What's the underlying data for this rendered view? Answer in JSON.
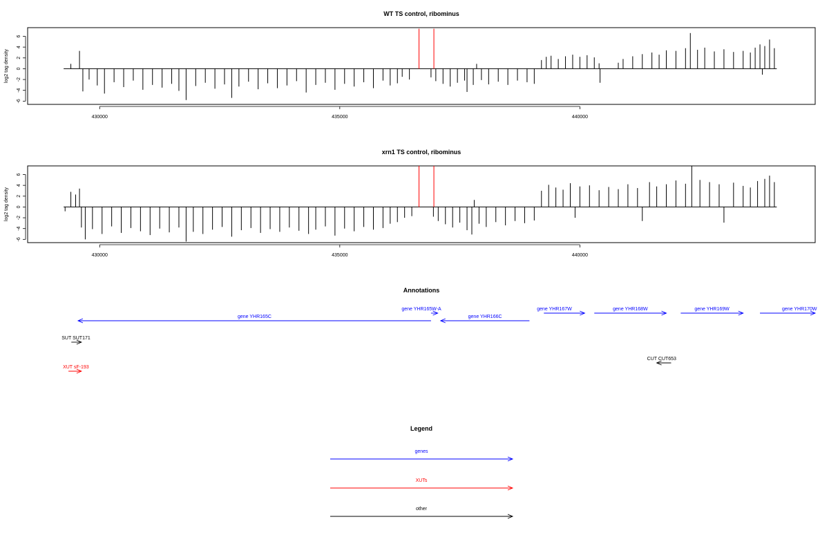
{
  "chart_data": [
    {
      "type": "bar",
      "title": "WT TS control, ribominus",
      "ylabel": "log2 tag density",
      "xlim": [
        428500,
        444900
      ],
      "ylim": [
        -6.6,
        7.6
      ],
      "x_ticks": [
        430000,
        435000,
        440000
      ],
      "x_tick_labels": [
        "430000",
        "435000",
        "440000"
      ],
      "y_ticks": [
        -6,
        -4,
        -2,
        0,
        2,
        4,
        6
      ],
      "baseline_range": [
        429250,
        444100
      ],
      "series": [
        {
          "color": "#000000",
          "values": [
            [
              429400,
              0.9
            ],
            [
              429580,
              3.3
            ],
            [
              429650,
              -4.2
            ],
            [
              429780,
              -2.0
            ],
            [
              429950,
              -3.1
            ],
            [
              430100,
              -4.6
            ],
            [
              430300,
              -2.5
            ],
            [
              430500,
              -3.4
            ],
            [
              430700,
              -2.2
            ],
            [
              430900,
              -3.9
            ],
            [
              431100,
              -3.0
            ],
            [
              431300,
              -3.5
            ],
            [
              431500,
              -2.8
            ],
            [
              431650,
              -4.1
            ],
            [
              431800,
              -5.8
            ],
            [
              432000,
              -3.2
            ],
            [
              432200,
              -2.6
            ],
            [
              432400,
              -3.7
            ],
            [
              432600,
              -2.9
            ],
            [
              432750,
              -5.4
            ],
            [
              432900,
              -3.3
            ],
            [
              433100,
              -2.4
            ],
            [
              433300,
              -3.8
            ],
            [
              433500,
              -2.7
            ],
            [
              433700,
              -3.6
            ],
            [
              433900,
              -3.1
            ],
            [
              434100,
              -2.3
            ],
            [
              434300,
              -4.4
            ],
            [
              434500,
              -3.0
            ],
            [
              434700,
              -2.6
            ],
            [
              434900,
              -3.9
            ],
            [
              435100,
              -2.8
            ],
            [
              435300,
              -3.3
            ],
            [
              435500,
              -2.5
            ],
            [
              435700,
              -3.6
            ],
            [
              435900,
              -2.2
            ],
            [
              436050,
              -3.1
            ],
            [
              436200,
              -2.7
            ],
            [
              436300,
              -1.5
            ],
            [
              436450,
              -2.0
            ],
            [
              436900,
              -1.6
            ],
            [
              437000,
              -2.3
            ],
            [
              437150,
              -2.8
            ],
            [
              437300,
              -3.3
            ],
            [
              437450,
              -2.6
            ],
            [
              437600,
              -2.2
            ],
            [
              437650,
              -4.3
            ],
            [
              437780,
              -3.0
            ],
            [
              437850,
              0.9
            ],
            [
              437950,
              -2.1
            ],
            [
              438100,
              -2.9
            ],
            [
              438300,
              -2.4
            ],
            [
              438500,
              -3.0
            ],
            [
              438700,
              -2.2
            ],
            [
              438900,
              -2.5
            ],
            [
              439050,
              -2.8
            ],
            [
              439200,
              1.6
            ],
            [
              439300,
              2.2
            ],
            [
              439400,
              2.4
            ],
            [
              439550,
              1.8
            ],
            [
              439700,
              2.3
            ],
            [
              439850,
              2.6
            ],
            [
              440000,
              2.2
            ],
            [
              440150,
              2.5
            ],
            [
              440300,
              2.1
            ],
            [
              440400,
              1.0
            ],
            [
              440420,
              -2.6
            ],
            [
              440800,
              1.1
            ],
            [
              440900,
              1.8
            ],
            [
              441100,
              2.3
            ],
            [
              441300,
              2.7
            ],
            [
              441500,
              3.0
            ],
            [
              441650,
              2.6
            ],
            [
              441800,
              3.4
            ],
            [
              442000,
              3.3
            ],
            [
              442200,
              3.8
            ],
            [
              442300,
              6.6
            ],
            [
              442450,
              3.5
            ],
            [
              442600,
              3.9
            ],
            [
              442800,
              3.2
            ],
            [
              443000,
              3.6
            ],
            [
              443200,
              3.1
            ],
            [
              443400,
              3.3
            ],
            [
              443550,
              3.0
            ],
            [
              443650,
              3.9
            ],
            [
              443750,
              4.5
            ],
            [
              443800,
              -1.1
            ],
            [
              443850,
              4.2
            ],
            [
              443950,
              5.4
            ],
            [
              444050,
              3.8
            ]
          ]
        },
        {
          "color": "#ff0000",
          "values": [
            [
              436650,
              7.4
            ],
            [
              436960,
              7.4
            ]
          ]
        }
      ]
    },
    {
      "type": "bar",
      "title": "xrn1 TS control, ribominus",
      "ylabel": "log2 tag density",
      "xlim": [
        428500,
        444900
      ],
      "ylim": [
        -6.6,
        7.6
      ],
      "x_ticks": [
        430000,
        435000,
        440000
      ],
      "x_tick_labels": [
        "430000",
        "435000",
        "440000"
      ],
      "y_ticks": [
        -6,
        -4,
        -2,
        0,
        2,
        4,
        6
      ],
      "baseline_range": [
        429250,
        444100
      ],
      "series": [
        {
          "color": "#000000",
          "values": [
            [
              429280,
              -0.8
            ],
            [
              429400,
              2.8
            ],
            [
              429500,
              2.3
            ],
            [
              429580,
              3.4
            ],
            [
              429620,
              -3.8
            ],
            [
              429700,
              -6.0
            ],
            [
              429850,
              -4.1
            ],
            [
              430050,
              -5.0
            ],
            [
              430250,
              -3.6
            ],
            [
              430450,
              -4.8
            ],
            [
              430650,
              -3.9
            ],
            [
              430850,
              -4.5
            ],
            [
              431050,
              -5.2
            ],
            [
              431250,
              -4.0
            ],
            [
              431450,
              -4.7
            ],
            [
              431650,
              -3.8
            ],
            [
              431800,
              -6.4
            ],
            [
              431950,
              -4.6
            ],
            [
              432150,
              -5.0
            ],
            [
              432350,
              -4.2
            ],
            [
              432550,
              -3.7
            ],
            [
              432750,
              -5.5
            ],
            [
              432950,
              -4.3
            ],
            [
              433150,
              -3.9
            ],
            [
              433350,
              -4.8
            ],
            [
              433550,
              -4.1
            ],
            [
              433750,
              -4.6
            ],
            [
              433950,
              -3.8
            ],
            [
              434150,
              -4.4
            ],
            [
              434350,
              -5.0
            ],
            [
              434500,
              -4.2
            ],
            [
              434700,
              -3.6
            ],
            [
              434900,
              -5.3
            ],
            [
              435100,
              -4.0
            ],
            [
              435300,
              -4.5
            ],
            [
              435500,
              -3.7
            ],
            [
              435700,
              -4.2
            ],
            [
              435900,
              -3.9
            ],
            [
              436050,
              -3.1
            ],
            [
              436200,
              -2.8
            ],
            [
              436350,
              -2.0
            ],
            [
              436500,
              -1.7
            ],
            [
              436950,
              -1.8
            ],
            [
              437050,
              -2.6
            ],
            [
              437200,
              -3.2
            ],
            [
              437350,
              -3.8
            ],
            [
              437500,
              -2.9
            ],
            [
              437650,
              -4.3
            ],
            [
              437750,
              -5.1
            ],
            [
              437800,
              1.3
            ],
            [
              437900,
              -3.1
            ],
            [
              438050,
              -3.7
            ],
            [
              438250,
              -2.8
            ],
            [
              438450,
              -3.4
            ],
            [
              438650,
              -2.6
            ],
            [
              438850,
              -3.0
            ],
            [
              439050,
              -2.5
            ],
            [
              439200,
              3.0
            ],
            [
              439350,
              4.1
            ],
            [
              439500,
              3.6
            ],
            [
              439650,
              3.2
            ],
            [
              439800,
              4.4
            ],
            [
              439900,
              -2.0
            ],
            [
              440000,
              3.8
            ],
            [
              440200,
              4.0
            ],
            [
              440400,
              3.1
            ],
            [
              440600,
              3.7
            ],
            [
              440800,
              3.3
            ],
            [
              441000,
              4.2
            ],
            [
              441200,
              3.5
            ],
            [
              441300,
              -2.6
            ],
            [
              441450,
              4.6
            ],
            [
              441600,
              3.8
            ],
            [
              441800,
              4.2
            ],
            [
              442000,
              4.9
            ],
            [
              442200,
              4.3
            ],
            [
              442330,
              7.6
            ],
            [
              442500,
              5.0
            ],
            [
              442700,
              4.6
            ],
            [
              442900,
              4.2
            ],
            [
              443000,
              -2.9
            ],
            [
              443200,
              4.5
            ],
            [
              443400,
              3.9
            ],
            [
              443550,
              3.6
            ],
            [
              443700,
              4.8
            ],
            [
              443850,
              5.2
            ],
            [
              443950,
              5.8
            ],
            [
              444050,
              4.6
            ]
          ]
        },
        {
          "color": "#ff0000",
          "values": [
            [
              436650,
              7.6
            ],
            [
              436960,
              7.6
            ]
          ]
        }
      ]
    }
  ],
  "annotations": {
    "title": "Annotations",
    "features": [
      {
        "label": "gene YHR165C",
        "start": 429550,
        "end": 436900,
        "strand": "-",
        "color": "#0000ff",
        "row": 2
      },
      {
        "label": "gene YHR165W-A",
        "start": 436900,
        "end": 437040,
        "strand": "+",
        "color": "#0000ff",
        "row": 1
      },
      {
        "label": "gene YHR166C",
        "start": 437100,
        "end": 438950,
        "strand": "-",
        "color": "#0000ff",
        "row": 2
      },
      {
        "label": "gene YHR167W",
        "start": 439250,
        "end": 440100,
        "strand": "+",
        "color": "#0000ff",
        "row": 1
      },
      {
        "label": "gene YHR168W",
        "start": 440300,
        "end": 441800,
        "strand": "+",
        "color": "#0000ff",
        "row": 1
      },
      {
        "label": "gene YHR169W",
        "start": 442100,
        "end": 443400,
        "strand": "+",
        "color": "#0000ff",
        "row": 1
      },
      {
        "label": "gene YHR170W",
        "start": 443750,
        "end": 444900,
        "strand": "+",
        "color": "#0000ff",
        "row": 1
      },
      {
        "label": "SUT SUT171",
        "start": 429410,
        "end": 429620,
        "strand": "+",
        "color": "#000000",
        "row": 3
      },
      {
        "label": "CUT CUT653",
        "start": 441600,
        "end": 441900,
        "strand": "-",
        "color": "#000000",
        "row": 4
      },
      {
        "label": "XUT sF-193",
        "start": 429350,
        "end": 429620,
        "strand": "+",
        "color": "#ff0000",
        "row": 5
      }
    ]
  },
  "legend": {
    "title": "Legend",
    "items": [
      {
        "label": "genes",
        "color": "#0000ff"
      },
      {
        "label": "XUTs",
        "color": "#ff0000"
      },
      {
        "label": "other",
        "color": "#000000"
      }
    ]
  }
}
